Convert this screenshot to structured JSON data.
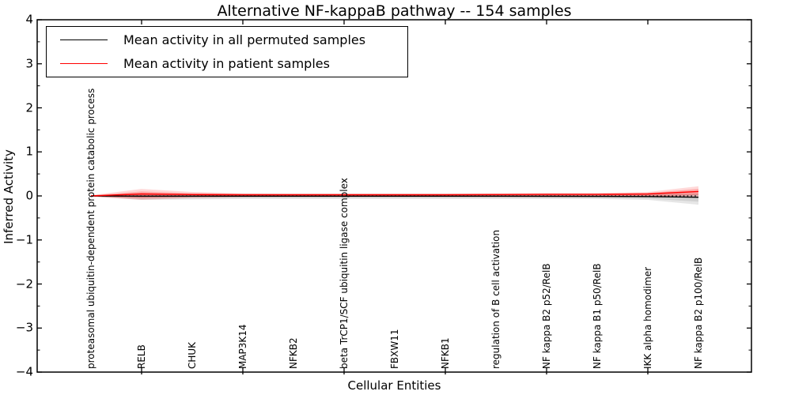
{
  "figure": {
    "title": "Alternative NF-kappaB pathway -- 154 samples"
  },
  "legend": {
    "entries": [
      {
        "label": "Mean activity in all permuted samples",
        "color": "#000000"
      },
      {
        "label": "Mean activity in patient samples",
        "color": "#ff0000"
      }
    ]
  },
  "chart_data": {
    "type": "line",
    "title": "Alternative NF-kappaB pathway -- 154 samples",
    "xlabel": "Cellular Entities",
    "ylabel": "Inferred Activity",
    "ylim": [
      -4,
      4
    ],
    "yticks": [
      4,
      3,
      2,
      1,
      0,
      -1,
      -2,
      -3,
      -4
    ],
    "y_minor_step": 0.5,
    "xtick_indices": [
      1,
      3,
      5,
      7,
      9,
      11
    ],
    "grid": false,
    "legend_position": "upper left",
    "zero_line": {
      "y": 0,
      "style": "dotted",
      "color": "#000000"
    },
    "categories": [
      "proteasomal ubiquitin-dependent protein catabolic process",
      "RELB",
      "CHUK",
      "MAP3K14",
      "NFKB2",
      "beta TrCP1/SCF ubiquitin ligase complex",
      "FBXW11",
      "NFKB1",
      "regulation of B cell activation",
      "NF kappa B2 p52/RelB",
      "NF kappa B1 p50/RelB",
      "IKK alpha homodimer",
      "NF kappa B2 p100/RelB"
    ],
    "series": [
      {
        "name": "Mean activity in all permuted samples",
        "color": "#000000",
        "values": [
          0.0,
          -0.005,
          -0.005,
          -0.005,
          -0.005,
          -0.005,
          -0.005,
          -0.005,
          -0.005,
          -0.008,
          -0.01,
          -0.015,
          -0.03
        ]
      },
      {
        "name": "Mean activity in patient samples",
        "color": "#ff0000",
        "values": [
          0.0,
          0.045,
          0.03,
          0.025,
          0.025,
          0.025,
          0.025,
          0.025,
          0.03,
          0.035,
          0.035,
          0.045,
          0.1
        ]
      }
    ],
    "bands": [
      {
        "name": "permuted-spread-outer",
        "color": "rgba(100,100,100,0.16)",
        "upper": [
          0.015,
          0.055,
          0.05,
          0.05,
          0.05,
          0.05,
          0.05,
          0.05,
          0.05,
          0.05,
          0.05,
          0.055,
          0.06
        ],
        "lower": [
          -0.015,
          -0.09,
          -0.08,
          -0.07,
          -0.07,
          -0.07,
          -0.07,
          -0.07,
          -0.07,
          -0.07,
          -0.07,
          -0.09,
          -0.2
        ]
      },
      {
        "name": "permuted-spread-inner",
        "color": "rgba(100,100,100,0.16)",
        "upper": [
          0.01,
          0.035,
          0.03,
          0.03,
          0.03,
          0.03,
          0.03,
          0.03,
          0.03,
          0.03,
          0.03,
          0.035,
          0.04
        ],
        "lower": [
          -0.01,
          -0.06,
          -0.05,
          -0.045,
          -0.045,
          -0.045,
          -0.045,
          -0.045,
          -0.045,
          -0.045,
          -0.045,
          -0.06,
          -0.13
        ]
      },
      {
        "name": "patient-spread-outer",
        "color": "rgba(255,0,0,0.15)",
        "upper": [
          0.015,
          0.16,
          0.09,
          0.06,
          0.055,
          0.055,
          0.055,
          0.055,
          0.06,
          0.07,
          0.07,
          0.09,
          0.22
        ],
        "lower": [
          -0.015,
          -0.09,
          -0.05,
          -0.03,
          -0.025,
          -0.025,
          -0.025,
          -0.025,
          -0.03,
          -0.03,
          -0.03,
          -0.03,
          -0.04
        ]
      },
      {
        "name": "patient-spread-inner",
        "color": "rgba(255,0,0,0.22)",
        "upper": [
          0.01,
          0.1,
          0.06,
          0.045,
          0.04,
          0.04,
          0.04,
          0.04,
          0.045,
          0.05,
          0.05,
          0.065,
          0.16
        ],
        "lower": [
          -0.01,
          -0.05,
          -0.02,
          -0.012,
          -0.01,
          -0.01,
          -0.01,
          -0.01,
          -0.012,
          -0.015,
          -0.015,
          -0.015,
          0.02
        ]
      }
    ]
  }
}
